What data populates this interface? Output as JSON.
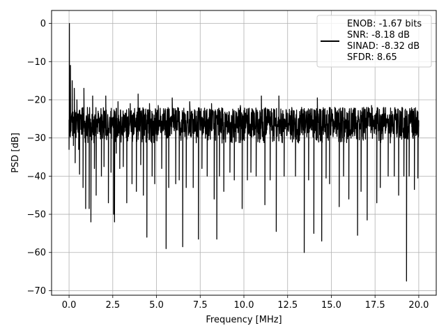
{
  "chart_data": {
    "type": "line",
    "title": "",
    "xlabel": "Frequency [MHz]",
    "ylabel": "PSD [dB]",
    "xlim": [
      -1.0,
      21.0
    ],
    "ylim": [
      -71.2,
      3.4
    ],
    "xticks": [
      0.0,
      2.5,
      5.0,
      7.5,
      10.0,
      12.5,
      15.0,
      17.5,
      20.0
    ],
    "xtick_labels": [
      "0.0",
      "2.5",
      "5.0",
      "7.5",
      "10.0",
      "12.5",
      "15.0",
      "17.5",
      "20.0"
    ],
    "yticks": [
      0,
      -10,
      -20,
      -30,
      -40,
      -50,
      -60,
      -70
    ],
    "ytick_labels": [
      "0",
      "−10",
      "−20",
      "−30",
      "−40",
      "−50",
      "−60",
      "−70"
    ],
    "grid": true,
    "legend_position": "top-right",
    "series": [
      {
        "color": "#000000",
        "noise_floor": {
          "x_start": 0.0,
          "x_end": 20.0,
          "min": -33.0,
          "max": -22.0
        },
        "points": [
          [
            0.0,
            -33.0
          ],
          [
            0.02,
            0.0
          ],
          [
            0.05,
            -28.0
          ],
          [
            0.08,
            -11.0
          ],
          [
            0.12,
            -25.0
          ],
          [
            0.18,
            -15.0
          ],
          [
            0.25,
            -32.0
          ],
          [
            0.3,
            -17.0
          ],
          [
            0.35,
            -36.5
          ],
          [
            0.45,
            -20.0
          ],
          [
            0.55,
            -33.0
          ],
          [
            0.6,
            -39.5
          ],
          [
            0.7,
            -24.0
          ],
          [
            0.8,
            -43.0
          ],
          [
            0.85,
            -17.0
          ],
          [
            0.9,
            -30.0
          ],
          [
            0.95,
            -48.5
          ],
          [
            1.05,
            -22.0
          ],
          [
            1.15,
            -48.5
          ],
          [
            1.25,
            -52.0
          ],
          [
            1.35,
            -19.0
          ],
          [
            1.45,
            -38.0
          ],
          [
            1.55,
            -45.0
          ],
          [
            1.75,
            -25.0
          ],
          [
            1.85,
            -40.0
          ],
          [
            2.0,
            -37.5
          ],
          [
            2.1,
            -19.0
          ],
          [
            2.25,
            -47.0
          ],
          [
            2.4,
            -39.0
          ],
          [
            2.55,
            -50.0
          ],
          [
            2.6,
            -52.0
          ],
          [
            2.7,
            -34.0
          ],
          [
            2.8,
            -20.5
          ],
          [
            2.9,
            -38.0
          ],
          [
            3.1,
            -37.5
          ],
          [
            3.3,
            -47.0
          ],
          [
            3.5,
            -21.0
          ],
          [
            3.6,
            -42.0
          ],
          [
            3.85,
            -44.0
          ],
          [
            3.95,
            -18.5
          ],
          [
            4.1,
            -37.0
          ],
          [
            4.25,
            -45.0
          ],
          [
            4.45,
            -56.0
          ],
          [
            4.6,
            -21.0
          ],
          [
            4.75,
            -40.0
          ],
          [
            4.9,
            -42.0
          ],
          [
            5.1,
            -21.5
          ],
          [
            5.3,
            -38.0
          ],
          [
            5.55,
            -59.0
          ],
          [
            5.7,
            -43.0
          ],
          [
            5.9,
            -19.5
          ],
          [
            6.1,
            -42.0
          ],
          [
            6.3,
            -41.0
          ],
          [
            6.5,
            -58.5
          ],
          [
            6.7,
            -43.0
          ],
          [
            6.9,
            -20.5
          ],
          [
            7.1,
            -43.0
          ],
          [
            7.4,
            -56.5
          ],
          [
            7.6,
            -38.0
          ],
          [
            7.9,
            -40.0
          ],
          [
            8.15,
            -21.0
          ],
          [
            8.3,
            -46.0
          ],
          [
            8.45,
            -56.5
          ],
          [
            8.6,
            -40.0
          ],
          [
            8.85,
            -44.0
          ],
          [
            9.2,
            -39.0
          ],
          [
            9.45,
            -41.0
          ],
          [
            9.8,
            -21.5
          ],
          [
            9.9,
            -48.5
          ],
          [
            10.2,
            -41.0
          ],
          [
            10.4,
            -39.0
          ],
          [
            10.7,
            -40.0
          ],
          [
            11.0,
            -19.0
          ],
          [
            11.2,
            -47.5
          ],
          [
            11.5,
            -41.0
          ],
          [
            11.85,
            -54.5
          ],
          [
            12.0,
            -19.0
          ],
          [
            12.3,
            -40.0
          ],
          [
            12.6,
            -22.5
          ],
          [
            12.95,
            -40.0
          ],
          [
            13.3,
            -22.0
          ],
          [
            13.45,
            -60.0
          ],
          [
            13.7,
            -41.0
          ],
          [
            14.0,
            -55.0
          ],
          [
            14.2,
            -19.5
          ],
          [
            14.45,
            -57.0
          ],
          [
            14.7,
            -40.5
          ],
          [
            14.9,
            -42.0
          ],
          [
            15.2,
            -22.0
          ],
          [
            15.45,
            -48.0
          ],
          [
            15.7,
            -40.0
          ],
          [
            16.0,
            -46.0
          ],
          [
            16.2,
            -25.5
          ],
          [
            16.5,
            -55.5
          ],
          [
            16.7,
            -44.0
          ],
          [
            16.85,
            -22.0
          ],
          [
            17.05,
            -51.5
          ],
          [
            17.3,
            -21.5
          ],
          [
            17.6,
            -47.0
          ],
          [
            17.8,
            -43.0
          ],
          [
            18.0,
            -22.0
          ],
          [
            18.25,
            -40.0
          ],
          [
            18.6,
            -40.0
          ],
          [
            18.85,
            -45.0
          ],
          [
            19.05,
            -22.0
          ],
          [
            19.15,
            -40.0
          ],
          [
            19.3,
            -67.5
          ],
          [
            19.45,
            -40.0
          ],
          [
            19.6,
            -24.0
          ],
          [
            19.75,
            -43.5
          ],
          [
            19.85,
            -28.0
          ],
          [
            19.95,
            -40.5
          ],
          [
            20.0,
            -27.0
          ]
        ]
      }
    ],
    "legend_lines": [
      "ENOB: -1.67 bits",
      "SNR: -8.18 dB",
      "SINAD: -8.32 dB",
      "SFDR: 8.65"
    ]
  }
}
